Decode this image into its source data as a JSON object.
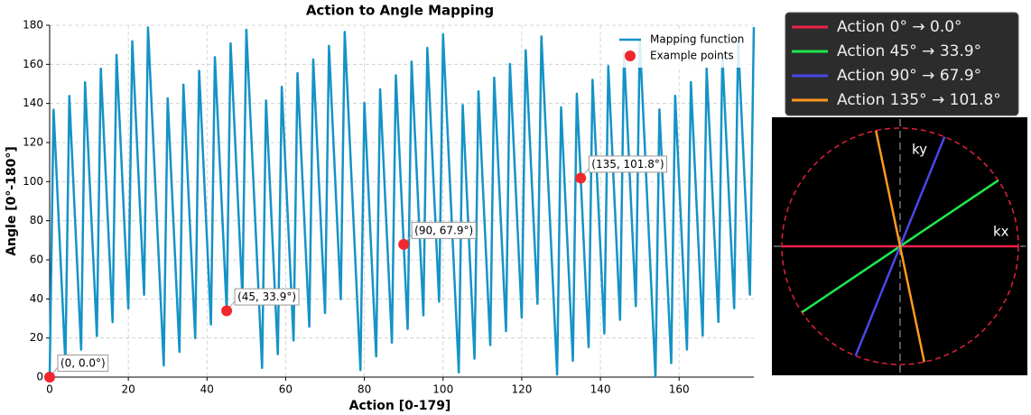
{
  "chart_data": {
    "type": "line",
    "title": "Action to Angle Mapping",
    "x_label": "Action [0-179]",
    "y_label": "Angle [0°-180°]",
    "xlim": [
      0,
      179
    ],
    "ylim": [
      0,
      180
    ],
    "xticks": [
      0,
      20,
      40,
      60,
      80,
      100,
      120,
      140,
      160
    ],
    "yticks": [
      0,
      20,
      40,
      60,
      80,
      100,
      120,
      140,
      160,
      180
    ],
    "grid": true,
    "legend": "upper right",
    "series": [
      {
        "name": "Mapping function",
        "color": "#1593c6",
        "values": [
          0,
          136.8,
          93.5,
          50.3,
          7.0,
          143.8,
          100.5,
          57.3,
          14.0,
          150.8,
          107.5,
          64.3,
          21.0,
          157.8,
          114.6,
          71.3,
          28.1,
          164.8,
          121.6,
          78.3,
          35.1,
          171.8,
          128.6,
          85.3,
          42.1,
          178.9,
          135.6,
          92.4,
          49.1,
          5.9,
          142.6,
          99.4,
          56.1,
          12.9,
          149.6,
          106.4,
          63.1,
          19.9,
          156.7,
          113.4,
          70.2,
          26.9,
          163.7,
          120.4,
          77.2,
          33.9,
          170.7,
          127.4,
          84.2,
          40.9,
          177.7,
          134.5,
          91.2,
          48.0,
          4.7,
          141.5,
          98.2,
          55.0,
          11.7,
          148.5,
          105.2,
          62.0,
          18.7,
          155.5,
          112.3,
          69.0,
          25.8,
          162.5,
          119.3,
          76.0,
          32.8,
          169.5,
          126.3,
          83.0,
          39.8,
          176.6,
          133.3,
          90.1,
          46.8,
          3.6,
          140.3,
          97.1,
          53.8,
          10.6,
          147.3,
          104.1,
          60.8,
          17.6,
          154.4,
          111.1,
          67.9,
          24.6,
          161.4,
          118.1,
          74.9,
          31.6,
          168.4,
          125.1,
          81.9,
          38.6,
          175.4,
          132.2,
          88.9,
          45.7,
          2.4,
          139.2,
          95.9,
          52.7,
          9.4,
          146.2,
          102.9,
          59.7,
          16.4,
          153.2,
          110.0,
          66.7,
          23.5,
          160.2,
          117.0,
          73.7,
          30.5,
          167.2,
          124.0,
          80.7,
          37.5,
          174.3,
          131.0,
          87.8,
          44.5,
          1.3,
          138.0,
          94.8,
          51.5,
          8.3,
          145.0,
          101.8,
          58.5,
          15.3,
          152.1,
          108.8,
          65.6,
          22.3,
          159.1,
          115.8,
          72.6,
          29.3,
          166.1,
          122.8,
          79.6,
          36.3,
          173.1,
          129.9,
          86.6,
          43.4,
          0.1,
          136.9,
          93.6,
          50.4,
          7.1,
          143.9,
          100.6,
          57.4,
          14.1,
          150.9,
          107.7,
          64.4,
          21.2,
          157.9,
          114.7,
          71.4,
          28.2,
          164.9,
          121.7,
          78.4,
          35.2,
          172.0,
          128.7,
          85.5,
          42.2,
          179.0
        ]
      },
      {
        "name": "Example points",
        "color": "#f0282d",
        "x": [
          0,
          45,
          90,
          135
        ],
        "values": [
          0.0,
          33.9,
          67.9,
          101.8
        ],
        "value_labels": [
          "(0, 0.0°)",
          "(45, 33.9°)",
          "(90, 67.9°)",
          "(135, 101.8°)"
        ]
      }
    ]
  },
  "diagram": {
    "axis_labels": [
      "kx",
      "ky"
    ],
    "lines": [
      {
        "label": "Action 0° → 0.0°",
        "color": "#f0204a",
        "angle": 0.0
      },
      {
        "label": "Action 45° → 33.9°",
        "color": "#1de84a",
        "angle": 33.9
      },
      {
        "label": "Action 90° → 67.9°",
        "color": "#4a46e8",
        "angle": 67.9
      },
      {
        "label": "Action 135° → 101.8°",
        "color": "#ff9a1e",
        "angle": 101.8
      }
    ]
  }
}
